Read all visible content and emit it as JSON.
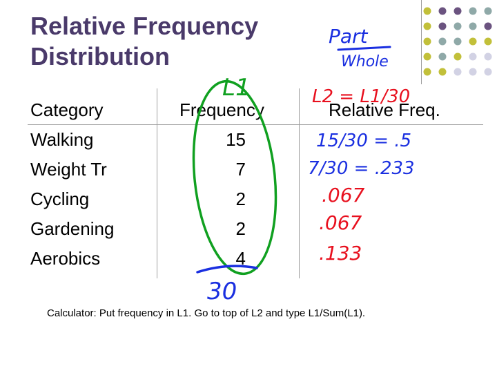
{
  "slide": {
    "title_line1": "Relative Frequency",
    "title_line2": "Distribution",
    "calculator_note": "Calculator:  Put frequency in L1.  Go to top of L2 and type L1/Sum(L1)."
  },
  "table": {
    "headers": {
      "category": "Category",
      "frequency": "Frequency",
      "relative": "Relative Freq."
    },
    "rows": [
      {
        "category": "Walking",
        "frequency": "15"
      },
      {
        "category": "Weight Tr",
        "frequency": "7"
      },
      {
        "category": "Cycling",
        "frequency": "2"
      },
      {
        "category": "Gardening",
        "frequency": "2"
      },
      {
        "category": "Aerobics",
        "frequency": "4"
      }
    ]
  },
  "handwriting": {
    "part_label": "Part",
    "whole_label": "Whole",
    "l1_label": "L1",
    "l2_formula": "L2 = L1/30",
    "total": "30",
    "rel_values": [
      "15/30 = .5",
      "7/30 = .233",
      ".067",
      ".067",
      ".133"
    ]
  },
  "colors": {
    "title": "#4a3a6a",
    "ink_red": "#e8101e",
    "ink_blue": "#1a2fe0",
    "ink_green": "#10a020",
    "dot_purple": "#6b5380",
    "dot_teal": "#8fa9a8",
    "dot_olive": "#c2c03a",
    "dot_lavender": "#d2d2e4"
  }
}
